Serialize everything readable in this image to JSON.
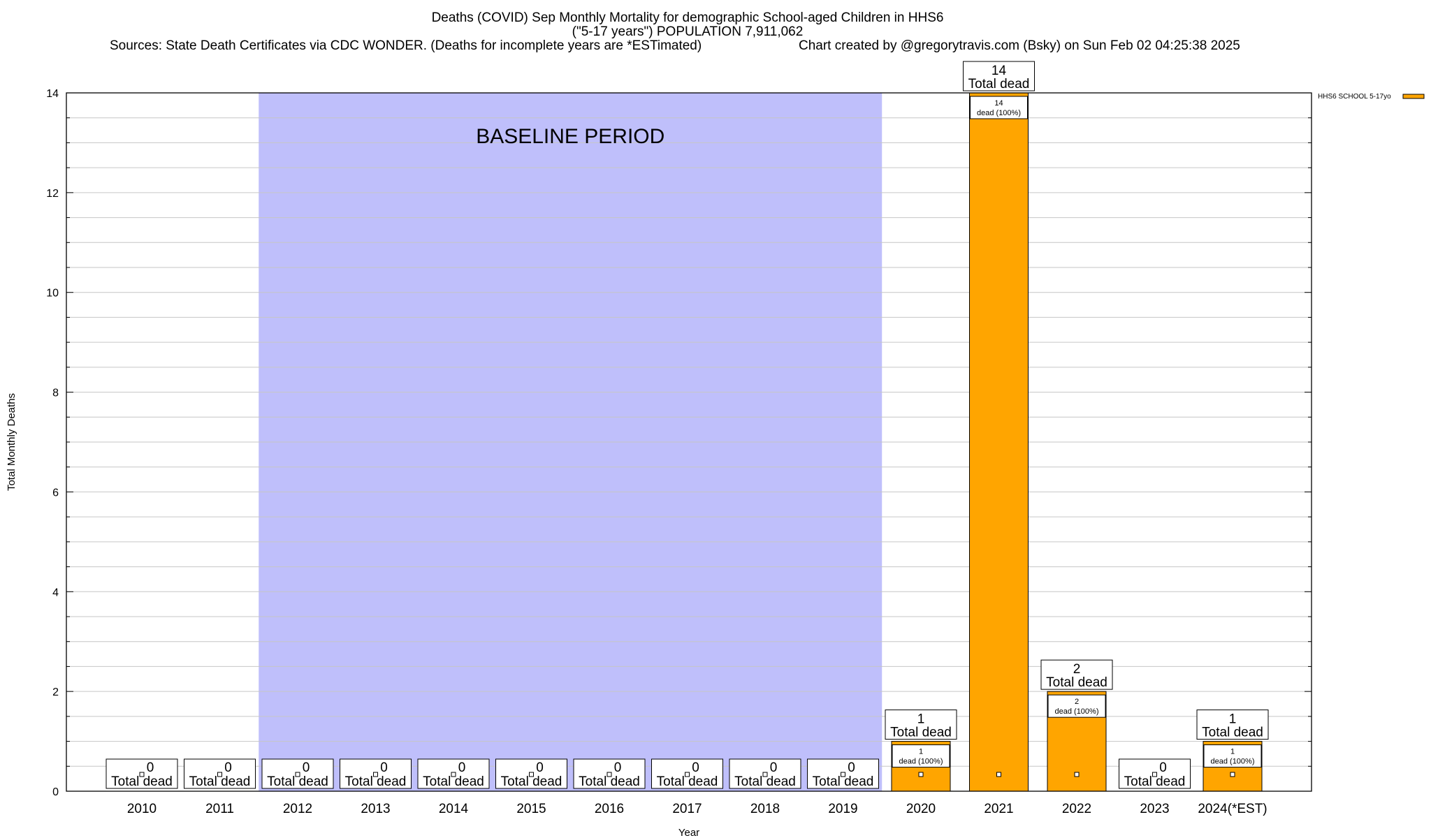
{
  "chart_data": {
    "type": "bar",
    "title_lines": [
      "Deaths (COVID) Sep Monthly Mortality for demographic School-aged Children in HHS6",
      "(\"5-17 years\") POPULATION 7,911,062"
    ],
    "sources": "Sources: State Death Certificates via CDC WONDER. (Deaths for incomplete years are *ESTimated)",
    "credit": "Chart created by @gregorytravis.com (Bsky) on Sun Feb 02 04:25:38 2025",
    "xlabel": "Year",
    "ylabel": "Total Monthly Deaths",
    "ylim": [
      0,
      14
    ],
    "yticks": [
      0,
      2,
      4,
      6,
      8,
      10,
      12,
      14
    ],
    "grid": true,
    "legend_position": "top-right",
    "baseline": {
      "label": "BASELINE PERIOD",
      "from": "2012",
      "to": "2019",
      "color": "#bfbffb"
    },
    "categories": [
      "2010",
      "2011",
      "2012",
      "2013",
      "2014",
      "2015",
      "2016",
      "2017",
      "2018",
      "2019",
      "2020",
      "2021",
      "2022",
      "2023",
      "2024(*EST)"
    ],
    "series": [
      {
        "name": "HHS6 SCHOOL 5-17yo",
        "color": "#ffa500",
        "values": [
          0,
          0,
          0,
          0,
          0,
          0,
          0,
          0,
          0,
          0,
          1,
          14,
          2,
          0,
          1
        ]
      }
    ],
    "total_label": "Total dead",
    "inner_labels": [
      "",
      "",
      "",
      "",
      "",
      "",
      "",
      "",
      "",
      "",
      "dead (100%)",
      "dead (100%)",
      "dead (100%)",
      "",
      "dead (100%)"
    ]
  }
}
